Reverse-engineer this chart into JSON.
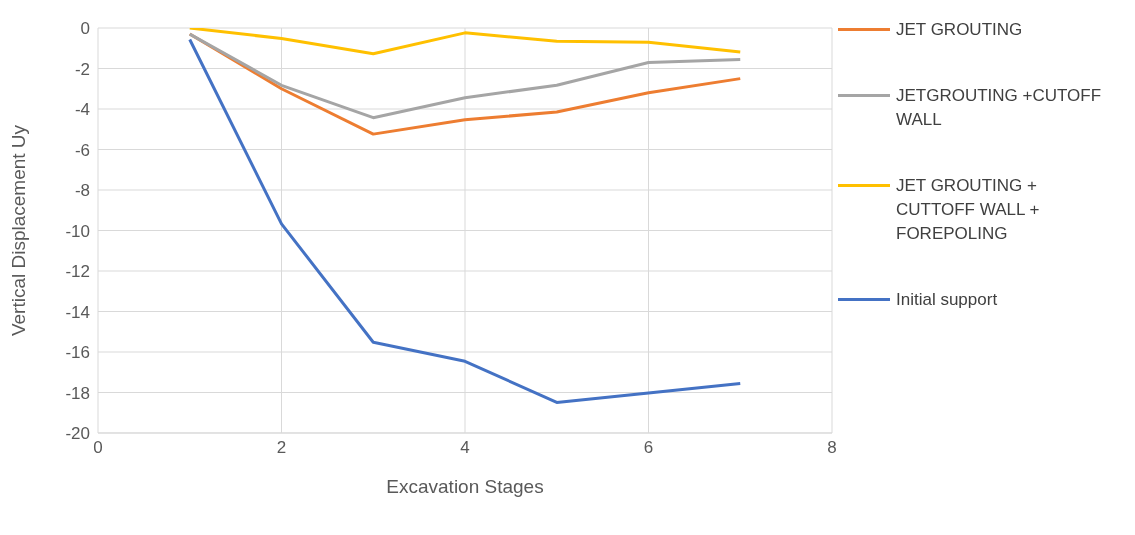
{
  "chart_data": {
    "type": "line",
    "xlabel": "Excavation Stages",
    "ylabel": "Vertical Displacement Uy",
    "x": [
      1,
      2,
      3,
      4,
      5,
      6,
      7
    ],
    "xlim": [
      0,
      8
    ],
    "xticks": [
      0,
      2,
      4,
      6,
      8
    ],
    "ylim": [
      -20,
      0
    ],
    "yticks": [
      -20,
      -18,
      -16,
      -14,
      -12,
      -10,
      -8,
      -6,
      -4,
      -2,
      0
    ],
    "grid": true,
    "legend": "right",
    "marker": "none",
    "line_style": "solid",
    "series": [
      {
        "name": "JET GROUTING",
        "color": "#ed7d31",
        "values": [
          -0.3,
          -3.0,
          -5.24,
          -4.53,
          -4.15,
          -3.2,
          -2.5
        ]
      },
      {
        "name": "JETGROUTING +CUTOFF WALL",
        "color": "#a5a5a5",
        "values": [
          -0.3,
          -2.83,
          -4.43,
          -3.44,
          -2.83,
          -1.7,
          -1.56
        ]
      },
      {
        "name": "JET GROUTING + CUTTOFF WALL + FOREPOLING",
        "color": "#ffc000",
        "values": [
          0,
          -0.52,
          -1.27,
          -0.24,
          -0.66,
          -0.7,
          -1.18
        ]
      },
      {
        "name": "Initial support",
        "color": "#4472c4",
        "values": [
          -0.57,
          -9.67,
          -15.52,
          -16.46,
          -18.49,
          -18.02,
          -17.55
        ]
      }
    ]
  }
}
